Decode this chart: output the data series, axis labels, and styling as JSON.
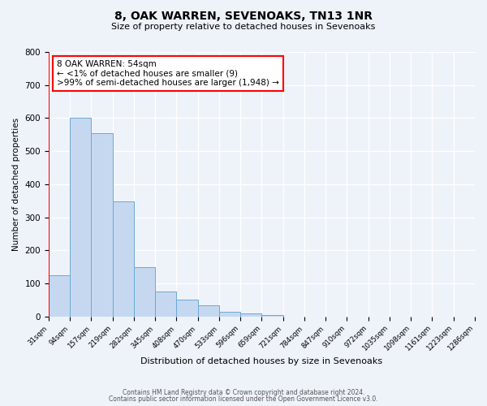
{
  "title": "8, OAK WARREN, SEVENOAKS, TN13 1NR",
  "subtitle": "Size of property relative to detached houses in Sevenoaks",
  "categories": [
    "31sqm",
    "94sqm",
    "157sqm",
    "219sqm",
    "282sqm",
    "345sqm",
    "408sqm",
    "470sqm",
    "533sqm",
    "596sqm",
    "659sqm",
    "721sqm",
    "784sqm",
    "847sqm",
    "910sqm",
    "972sqm",
    "1035sqm",
    "1098sqm",
    "1161sqm",
    "1223sqm",
    "1286sqm"
  ],
  "bar_values": [
    125,
    600,
    555,
    348,
    150,
    75,
    52,
    35,
    15,
    10,
    5,
    0,
    0,
    0,
    0,
    0,
    0,
    0,
    0,
    0
  ],
  "bar_color": "#c5d8f0",
  "bar_edge_color": "#6aaad4",
  "ylabel": "Number of detached properties",
  "xlabel": "Distribution of detached houses by size in Sevenoaks",
  "ylim": [
    0,
    800
  ],
  "yticks": [
    0,
    100,
    200,
    300,
    400,
    500,
    600,
    700,
    800
  ],
  "annotation_title": "8 OAK WARREN: 54sqm",
  "annotation_line1": "← <1% of detached houses are smaller (9)",
  "annotation_line2": ">99% of semi-detached houses are larger (1,948) →",
  "footer_line1": "Contains HM Land Registry data © Crown copyright and database right 2024.",
  "footer_line2": "Contains public sector information licensed under the Open Government Licence v3.0.",
  "background_color": "#eef2f9",
  "grid_color": "#ffffff"
}
